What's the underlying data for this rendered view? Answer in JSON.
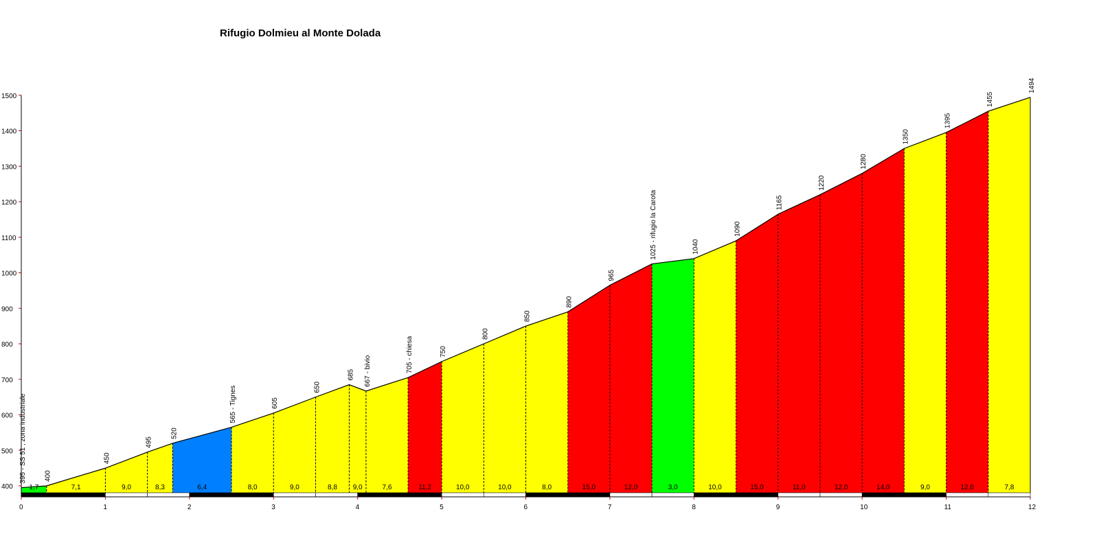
{
  "chart_data": {
    "type": "area",
    "title": "Rifugio Dolmieu al Monte Dolada",
    "xlabel": "",
    "ylabel": "",
    "xlim": [
      0,
      12
    ],
    "ylim": [
      375,
      1500
    ],
    "y_ticks": [
      400,
      500,
      600,
      700,
      800,
      900,
      1000,
      1100,
      1200,
      1300,
      1400,
      1500
    ],
    "x_ticks": [
      0,
      1,
      2,
      3,
      4,
      5,
      6,
      7,
      8,
      9,
      10,
      11,
      12
    ],
    "colors": {
      "green": "#00ff00",
      "yellow": "#ffff00",
      "blue": "#0080ff",
      "red": "#ff0000",
      "axis_tick": "#cc0000"
    },
    "points": [
      {
        "x": 0.0,
        "y": 395,
        "label": "395 - SS 51 , zona industriale"
      },
      {
        "x": 0.3,
        "y": 400,
        "label": "400"
      },
      {
        "x": 1.0,
        "y": 450,
        "label": "450"
      },
      {
        "x": 1.5,
        "y": 495,
        "label": "495"
      },
      {
        "x": 1.8,
        "y": 520,
        "label": "520"
      },
      {
        "x": 2.5,
        "y": 565,
        "label": "565 - Tignes"
      },
      {
        "x": 3.0,
        "y": 605,
        "label": "605"
      },
      {
        "x": 3.5,
        "y": 650,
        "label": "650"
      },
      {
        "x": 3.9,
        "y": 685,
        "label": "685"
      },
      {
        "x": 4.1,
        "y": 667,
        "label": "667 - bivio"
      },
      {
        "x": 4.6,
        "y": 705,
        "label": "705 - chiesa"
      },
      {
        "x": 5.0,
        "y": 750,
        "label": "750"
      },
      {
        "x": 5.5,
        "y": 800,
        "label": "800"
      },
      {
        "x": 6.0,
        "y": 850,
        "label": "850"
      },
      {
        "x": 6.5,
        "y": 890,
        "label": "890"
      },
      {
        "x": 7.0,
        "y": 965,
        "label": "965"
      },
      {
        "x": 7.5,
        "y": 1025,
        "label": "1025 - rifugio la Carota"
      },
      {
        "x": 8.0,
        "y": 1040,
        "label": "1040"
      },
      {
        "x": 8.5,
        "y": 1090,
        "label": "1090"
      },
      {
        "x": 9.0,
        "y": 1165,
        "label": "1165"
      },
      {
        "x": 9.5,
        "y": 1220,
        "label": "1220"
      },
      {
        "x": 10.0,
        "y": 1280,
        "label": "1280"
      },
      {
        "x": 10.5,
        "y": 1350,
        "label": "1350"
      },
      {
        "x": 11.0,
        "y": 1395,
        "label": "1395"
      },
      {
        "x": 11.5,
        "y": 1455,
        "label": "1455"
      },
      {
        "x": 12.0,
        "y": 1494,
        "label": "1494"
      }
    ],
    "segments": [
      {
        "grade": "1,7",
        "color": "green"
      },
      {
        "grade": "7,1",
        "color": "yellow"
      },
      {
        "grade": "9,0",
        "color": "yellow"
      },
      {
        "grade": "8,3",
        "color": "yellow"
      },
      {
        "grade": "6,4",
        "color": "blue"
      },
      {
        "grade": "8,0",
        "color": "yellow"
      },
      {
        "grade": "9,0",
        "color": "yellow"
      },
      {
        "grade": "8,8",
        "color": "yellow"
      },
      {
        "grade": "9,0",
        "color": "yellow"
      },
      {
        "grade": "7,6",
        "color": "yellow"
      },
      {
        "grade": "11,2",
        "color": "red"
      },
      {
        "grade": "10,0",
        "color": "yellow"
      },
      {
        "grade": "10,0",
        "color": "yellow"
      },
      {
        "grade": "8,0",
        "color": "yellow"
      },
      {
        "grade": "15,0",
        "color": "red"
      },
      {
        "grade": "12,0",
        "color": "red"
      },
      {
        "grade": "3,0",
        "color": "green"
      },
      {
        "grade": "10,0",
        "color": "yellow"
      },
      {
        "grade": "15,0",
        "color": "red"
      },
      {
        "grade": "11,0",
        "color": "red"
      },
      {
        "grade": "12,0",
        "color": "red"
      },
      {
        "grade": "14,0",
        "color": "red"
      },
      {
        "grade": "9,0",
        "color": "yellow"
      },
      {
        "grade": "12,0",
        "color": "red"
      },
      {
        "grade": "7,8",
        "color": "yellow"
      }
    ]
  }
}
